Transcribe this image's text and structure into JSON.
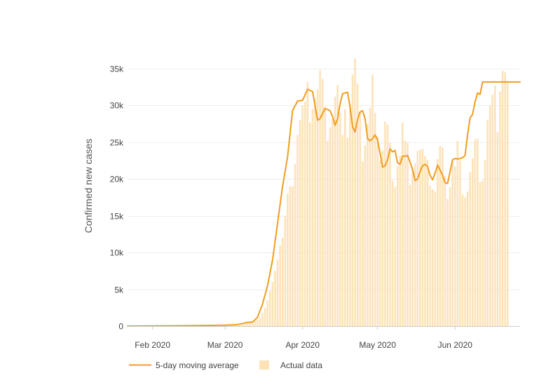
{
  "chart_data": {
    "type": "bar",
    "ylabel": "Confirmed new cases",
    "xlabel": "",
    "ylim": [
      0,
      35000
    ],
    "x_start": "2020-01-22",
    "x_end": "2020-06-27",
    "y_ticks": [
      {
        "value": 0,
        "label": "0"
      },
      {
        "value": 5000,
        "label": "5k"
      },
      {
        "value": 10000,
        "label": "10k"
      },
      {
        "value": 15000,
        "label": "15k"
      },
      {
        "value": 20000,
        "label": "20k"
      },
      {
        "value": 25000,
        "label": "25k"
      },
      {
        "value": 30000,
        "label": "30k"
      },
      {
        "value": 35000,
        "label": "35k"
      }
    ],
    "x_ticks": [
      {
        "date": "2020-02-01",
        "label": "Feb 2020"
      },
      {
        "date": "2020-03-01",
        "label": "Mar 2020"
      },
      {
        "date": "2020-04-01",
        "label": "Apr 2020"
      },
      {
        "date": "2020-05-01",
        "label": "May 2020"
      },
      {
        "date": "2020-06-01",
        "label": "Jun 2020"
      }
    ],
    "grid": true,
    "legend_position": "bottom-left",
    "colors": {
      "line": "#f29d1f",
      "bars": "#fde2b8",
      "grid": "#eeeeee",
      "axis": "#cccccc"
    },
    "series": [
      {
        "name": "5-day moving average",
        "type": "line",
        "dates": [
          "2020-01-22",
          "2020-02-01",
          "2020-02-15",
          "2020-03-01",
          "2020-03-06",
          "2020-03-08",
          "2020-03-10",
          "2020-03-12",
          "2020-03-14",
          "2020-03-16",
          "2020-03-18",
          "2020-03-20",
          "2020-03-22",
          "2020-03-24",
          "2020-03-26",
          "2020-03-28",
          "2020-03-30",
          "2020-04-01",
          "2020-04-03",
          "2020-04-05",
          "2020-04-07",
          "2020-04-08",
          "2020-04-10",
          "2020-04-12",
          "2020-04-13",
          "2020-04-14",
          "2020-04-15",
          "2020-04-16",
          "2020-04-17",
          "2020-04-19",
          "2020-04-20",
          "2020-04-21",
          "2020-04-22",
          "2020-04-23",
          "2020-04-24",
          "2020-04-25",
          "2020-04-26",
          "2020-04-27",
          "2020-04-28",
          "2020-04-29",
          "2020-04-30",
          "2020-05-01",
          "2020-05-02",
          "2020-05-03",
          "2020-05-04",
          "2020-05-05",
          "2020-05-06",
          "2020-05-07",
          "2020-05-08",
          "2020-05-09",
          "2020-05-10",
          "2020-05-11",
          "2020-05-12",
          "2020-05-13",
          "2020-05-14",
          "2020-05-15",
          "2020-05-16",
          "2020-05-17",
          "2020-05-18",
          "2020-05-19",
          "2020-05-20",
          "2020-05-21",
          "2020-05-22",
          "2020-05-23",
          "2020-05-24",
          "2020-05-25",
          "2020-05-26",
          "2020-05-27",
          "2020-05-28",
          "2020-05-29",
          "2020-05-30",
          "2020-05-31",
          "2020-06-01",
          "2020-06-02",
          "2020-06-03",
          "2020-06-04",
          "2020-06-05",
          "2020-06-06",
          "2020-06-07",
          "2020-06-08",
          "2020-06-09",
          "2020-06-10",
          "2020-06-11",
          "2020-06-12",
          "2020-06-13",
          "2020-06-14",
          "2020-06-15",
          "2020-06-16",
          "2020-06-17",
          "2020-06-18",
          "2020-06-19",
          "2020-06-20",
          "2020-06-21",
          "2020-06-22",
          "2020-06-23",
          "2020-06-24",
          "2020-06-25",
          "2020-06-26",
          "2020-06-27"
        ],
        "values": [
          0,
          20,
          60,
          120,
          200,
          350,
          500,
          550,
          1200,
          3000,
          5500,
          9000,
          14000,
          19000,
          23000,
          29300,
          30600,
          30700,
          32200,
          31900,
          28000,
          28200,
          29600,
          29300,
          28500,
          27300,
          28200,
          30200,
          31600,
          31800,
          29800,
          27100,
          26400,
          28100,
          29100,
          29300,
          28200,
          25500,
          25200,
          25500,
          26000,
          25300,
          23500,
          21600,
          21800,
          22600,
          24100,
          23700,
          23900,
          22200,
          22000,
          23100,
          23100,
          23200,
          22300,
          21300,
          19800,
          20000,
          21000,
          21800,
          22000,
          21700,
          20500,
          19900,
          20800,
          21900,
          21200,
          20500,
          19500,
          19400,
          21000,
          22600,
          22800,
          22700,
          22800,
          22900,
          23200,
          26000,
          28300,
          28800,
          30500,
          31700,
          31500,
          33200,
          33200,
          33200,
          33200,
          33200,
          33200,
          33200,
          33200,
          33200,
          33200,
          33200,
          33200,
          33200,
          33200,
          33200,
          33200
        ]
      },
      {
        "name": "Actual data",
        "type": "bar",
        "start_date": "2020-01-22",
        "values": [
          0,
          0,
          0,
          0,
          0,
          0,
          0,
          0,
          0,
          0,
          10,
          10,
          10,
          10,
          10,
          10,
          10,
          10,
          20,
          20,
          20,
          20,
          20,
          20,
          30,
          30,
          30,
          40,
          40,
          40,
          50,
          50,
          60,
          60,
          60,
          70,
          70,
          70,
          80,
          80,
          90,
          90,
          90,
          100,
          100,
          110,
          200,
          300,
          400,
          500,
          600,
          700,
          900,
          1200,
          1800,
          2500,
          3500,
          4800,
          6000,
          7500,
          9000,
          11000,
          12000,
          15000,
          18000,
          19000,
          19000,
          22000,
          26000,
          28000,
          30000,
          30500,
          33200,
          27700,
          29500,
          31000,
          32200,
          34800,
          33600,
          29800,
          25200,
          27000,
          28200,
          31200,
          32800,
          29000,
          26000,
          29500,
          25600,
          30100,
          34200,
          36400,
          33000,
          29200,
          22400,
          24600,
          27500,
          29700,
          34200,
          29000,
          25800,
          22500,
          23800,
          27800,
          27400,
          24900,
          19800,
          18900,
          21800,
          23200,
          27700,
          25200,
          25000,
          19200,
          21400,
          22100,
          23800,
          24000,
          24100,
          23100,
          22600,
          19100,
          18600,
          18300,
          22700,
          24500,
          24300,
          20400,
          17300,
          18900,
          22500,
          21700,
          25200,
          22500,
          17900,
          17500,
          18300,
          20900,
          22800,
          25400,
          25500,
          19600,
          19800,
          22600,
          28000,
          30000,
          31500,
          32700,
          26400,
          31900,
          34700,
          34500,
          33200
        ]
      }
    ]
  }
}
